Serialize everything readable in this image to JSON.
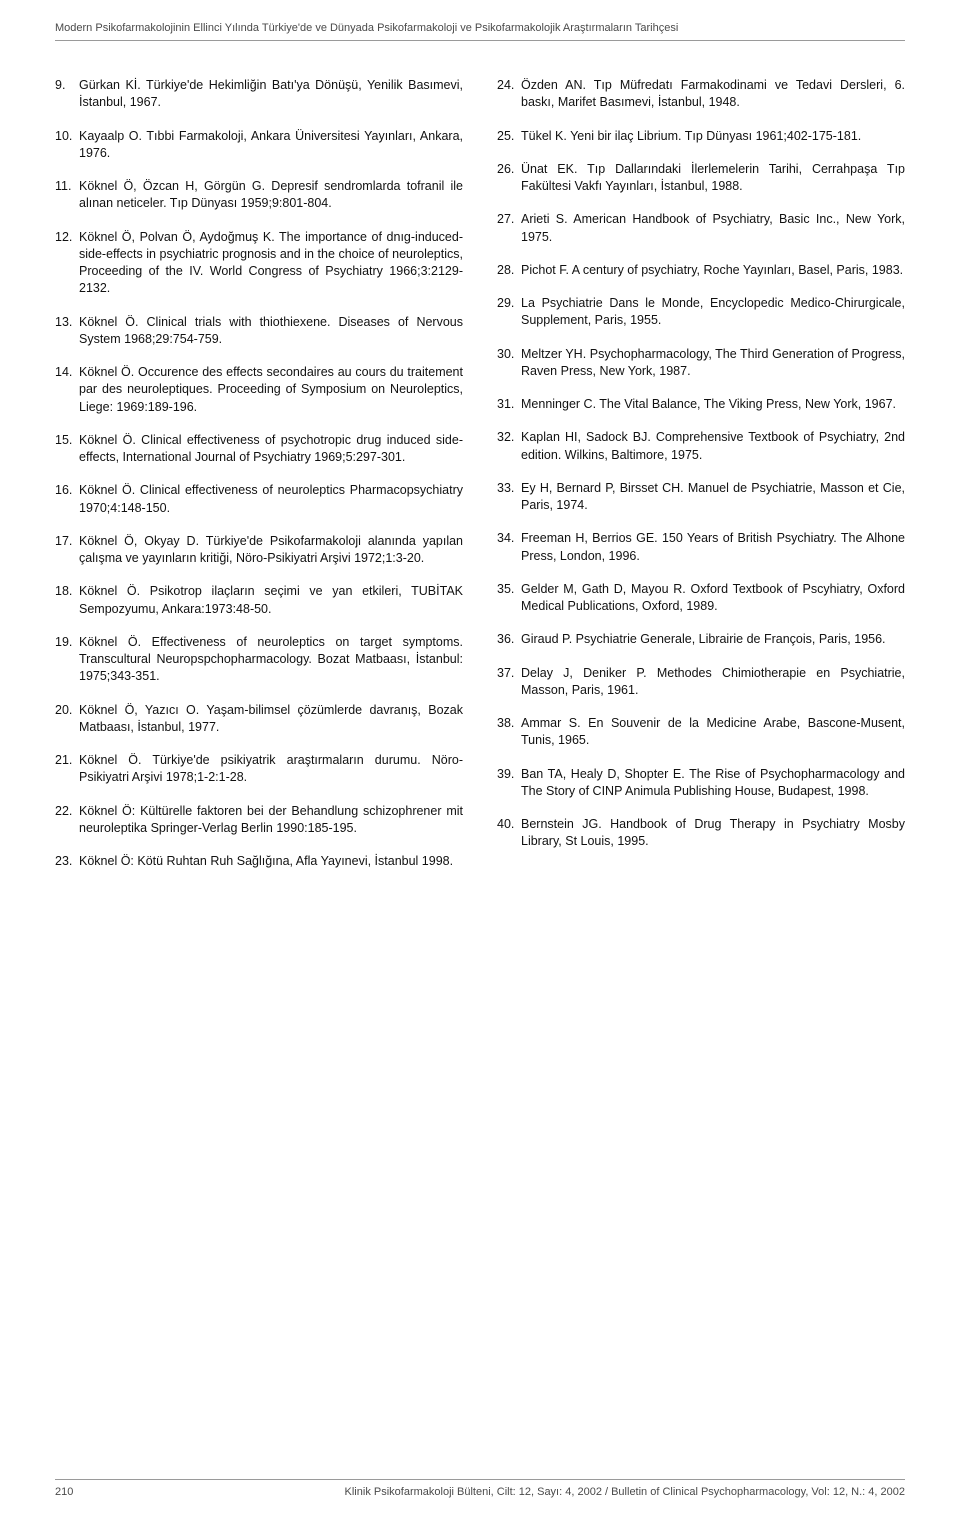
{
  "header": {
    "running_title": "Modern Psikofarmakolojinin Ellinci Yılında Türkiye'de ve Dünyada Psikofarmakoloji ve Psikofarmakolojik Araştırmaların Tarihçesi"
  },
  "references": {
    "left": [
      {
        "num": "9.",
        "text": "Gürkan Kİ. Türkiye'de Hekimliğin Batı'ya Dönüşü, Yenilik Basımevi, İstanbul, 1967."
      },
      {
        "num": "10.",
        "text": "Kayaalp O. Tıbbi Farmakoloji, Ankara Üniversitesi Yayınları, Ankara, 1976."
      },
      {
        "num": "11.",
        "text": "Köknel Ö, Özcan H, Görgün G. Depresif sendromlarda tofranil ile alınan neticeler. Tıp Dünyası 1959;9:801-804."
      },
      {
        "num": "12.",
        "text": "Köknel Ö, Polvan Ö, Aydoğmuş K. The importance of dnıg-induced-side-effects in psychiatric prognosis and in the choice of neuroleptics, Proceeding of the IV. World Congress of Psychiatry 1966;3:2129-2132."
      },
      {
        "num": "13.",
        "text": "Köknel Ö. Clinical trials with thiothiexene. Diseases of Nervous System 1968;29:754-759."
      },
      {
        "num": "14.",
        "text": "Köknel Ö. Occurence des effects secondaires au cours du traitement par des neuroleptiques. Proceeding of Symposium on Neuroleptics, Liege: 1969:189-196."
      },
      {
        "num": "15.",
        "text": "Köknel Ö. Clinical effectiveness of psychotropic drug induced side-effects, International Journal of Psychiatry 1969;5:297-301."
      },
      {
        "num": "16.",
        "text": "Köknel Ö. Clinical effectiveness of neuroleptics Pharmacopsychiatry 1970;4:148-150."
      },
      {
        "num": "17.",
        "text": "Köknel Ö, Okyay D. Türkiye'de Psikofarmakoloji alanında yapılan çalışma ve yayınların kritiği, Nöro-Psikiyatri Arşivi 1972;1:3-20."
      },
      {
        "num": "18.",
        "text": "Köknel Ö. Psikotrop ilaçların seçimi ve yan etkileri, TUBİTAK Sempozyumu, Ankara:1973:48-50."
      },
      {
        "num": "19.",
        "text": "Köknel Ö. Effectiveness of neuroleptics on target symptoms. Transcultural Neuropspchopharmacology. Bozat Matbaası, İstanbul: 1975;343-351."
      },
      {
        "num": "20.",
        "text": "Köknel Ö, Yazıcı O. Yaşam-bilimsel çözümlerde davranış, Bozak Matbaası, İstanbul, 1977."
      },
      {
        "num": "21.",
        "text": "Köknel Ö. Türkiye'de psikiyatrik araştırmaların durumu. Nöro-Psikiyatri Arşivi 1978;1-2:1-28."
      },
      {
        "num": "22.",
        "text": "Köknel Ö: Kültürelle faktoren bei der Behandlung schizophrener mit neuroleptika Springer-Verlag Berlin 1990:185-195."
      },
      {
        "num": "23.",
        "text": "Köknel Ö: Kötü Ruhtan Ruh Sağlığına, Afla Yayınevi, İstanbul 1998."
      }
    ],
    "right": [
      {
        "num": "24.",
        "text": "Özden AN. Tıp Müfredatı Farmakodinami ve Tedavi Dersleri, 6. baskı, Marifet Basımevi, İstanbul, 1948."
      },
      {
        "num": "25.",
        "text": "Tükel K. Yeni bir ilaç Librium. Tıp Dünyası 1961;402-175-181."
      },
      {
        "num": "26.",
        "text": "Ünat EK. Tıp Dallarındaki İlerlemelerin Tarihi, Cerrahpaşa Tıp Fakültesi Vakfı Yayınları, İstanbul, 1988."
      },
      {
        "num": "27.",
        "text": "Arieti S. American Handbook of Psychiatry, Basic Inc., New York, 1975."
      },
      {
        "num": "28.",
        "text": "Pichot F. A century of psychiatry, Roche Yayınları, Basel, Paris, 1983."
      },
      {
        "num": "29.",
        "text": "La Psychiatrie Dans le Monde, Encyclopedic Medico-Chirurgicale, Supplement, Paris, 1955."
      },
      {
        "num": "30.",
        "text": "Meltzer YH. Psychopharmacology, The Third Generation of Progress, Raven Press, New York, 1987."
      },
      {
        "num": "31.",
        "text": "Menninger C. The Vital Balance, The Viking Press, New York, 1967."
      },
      {
        "num": "32.",
        "text": "Kaplan HI, Sadock BJ. Comprehensive Textbook of Psychiatry, 2nd edition. Wilkins, Baltimore, 1975."
      },
      {
        "num": "33.",
        "text": "Ey H, Bernard P, Birsset CH. Manuel de Psychiatrie, Masson et Cie, Paris, 1974."
      },
      {
        "num": "34.",
        "text": "Freeman H, Berrios GE. 150 Years of British Psychiatry. The Alhone Press, London, 1996."
      },
      {
        "num": "35.",
        "text": "Gelder M, Gath D, Mayou R. Oxford Textbook of Pscyhiatry, Oxford Medical Publications, Oxford, 1989."
      },
      {
        "num": "36.",
        "text": "Giraud P. Psychiatrie Generale, Librairie de François, Paris, 1956."
      },
      {
        "num": "37.",
        "text": "Delay J, Deniker P. Methodes Chimiotherapie en Psychiatrie, Masson, Paris, 1961."
      },
      {
        "num": "38.",
        "text": "Ammar S. En Souvenir de la Medicine Arabe, Bascone-Musent, Tunis, 1965."
      },
      {
        "num": "39.",
        "text": "Ban TA, Healy D, Shopter E. The Rise of Psychopharmacology and The Story of CINP Animula Publishing House, Budapest, 1998."
      },
      {
        "num": "40.",
        "text": "Bernstein JG. Handbook of Drug Therapy in Psychiatry Mosby Library, St Louis, 1995."
      }
    ]
  },
  "footer": {
    "page_number": "210",
    "journal_line": "Klinik Psikofarmakoloji Bülteni, Cilt: 12, Sayı: 4, 2002 / Bulletin of Clinical Psychopharmacology, Vol: 12, N.: 4, 2002"
  }
}
